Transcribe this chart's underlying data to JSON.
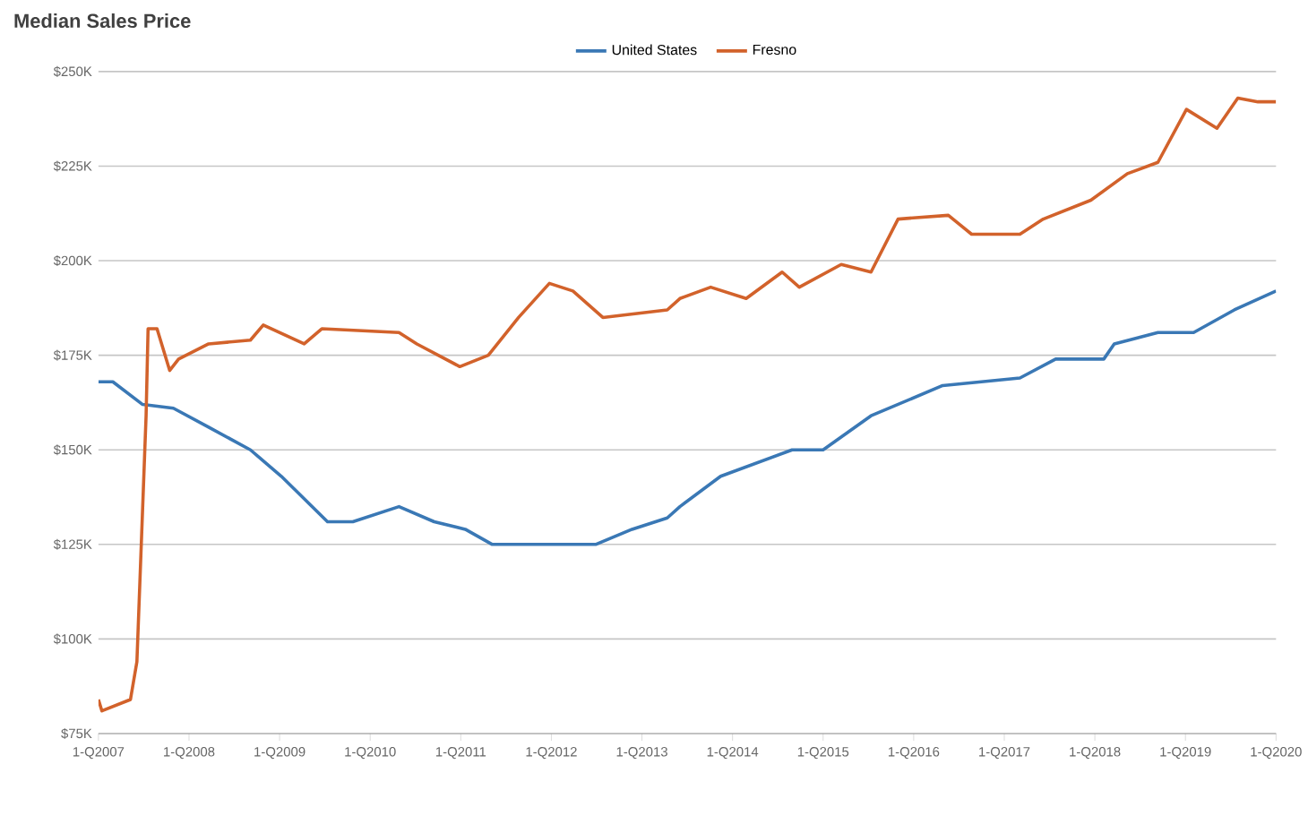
{
  "chart_data": {
    "type": "line",
    "title": "Median Sales Price",
    "xlim": [
      "2007-01-01",
      "2020-01-01"
    ],
    "xticks": [
      {
        "value": "2007-01-01",
        "label": "1-Q2007"
      },
      {
        "value": "2008-01-01",
        "label": "1-Q2008"
      },
      {
        "value": "2009-01-01",
        "label": "1-Q2009"
      },
      {
        "value": "2010-01-01",
        "label": "1-Q2010"
      },
      {
        "value": "2011-01-01",
        "label": "1-Q2011"
      },
      {
        "value": "2012-01-01",
        "label": "1-Q2012"
      },
      {
        "value": "2013-01-01",
        "label": "1-Q2013"
      },
      {
        "value": "2014-01-01",
        "label": "1-Q2014"
      },
      {
        "value": "2015-01-01",
        "label": "1-Q2015"
      },
      {
        "value": "2016-01-01",
        "label": "1-Q2016"
      },
      {
        "value": "2017-01-01",
        "label": "1-Q2017"
      },
      {
        "value": "2018-01-01",
        "label": "1-Q2018"
      },
      {
        "value": "2019-01-01",
        "label": "1-Q2019"
      },
      {
        "value": "2020-01-01",
        "label": "1-Q2020"
      }
    ],
    "ylim": [
      75,
      250
    ],
    "yticks": [
      {
        "value": 75,
        "label": "$75K"
      },
      {
        "value": 100,
        "label": "$100K"
      },
      {
        "value": 125,
        "label": "$125K"
      },
      {
        "value": 150,
        "label": "$150K"
      },
      {
        "value": 175,
        "label": "$175K"
      },
      {
        "value": 200,
        "label": "$200K"
      },
      {
        "value": 225,
        "label": "$225K"
      },
      {
        "value": 250,
        "label": "$250K"
      }
    ],
    "grid": "y",
    "legend": "top",
    "marker": "none",
    "line_style": "solid",
    "series": [
      {
        "name": "United States",
        "color": "#3a78b5",
        "x": [
          "2007-01-01",
          "2007-02-28",
          "2007-06-28",
          "2007-10-30",
          "2008-03-20",
          "2008-09-05",
          "2009-01-08",
          "2009-07-13",
          "2009-10-23",
          "2010-04-27",
          "2010-09-16",
          "2011-01-19",
          "2011-05-08",
          "2012-06-28",
          "2012-11-22",
          "2013-04-13",
          "2013-06-03",
          "2013-11-14",
          "2014-08-29",
          "2015-01-01",
          "2015-07-13",
          "2016-04-27",
          "2017-03-05",
          "2017-07-27",
          "2018-02-06",
          "2018-03-20",
          "2018-09-12",
          "2019-02-03",
          "2019-07-17",
          "2020-01-01"
        ],
        "values": [
          168,
          168,
          162,
          161,
          156,
          150,
          143,
          131,
          131,
          135,
          131,
          129,
          125,
          125,
          129,
          132,
          135,
          143,
          150,
          150,
          159,
          167,
          169,
          174,
          174,
          178,
          181,
          181,
          187,
          192
        ]
      },
      {
        "name": "Fresno",
        "color": "#d2622b",
        "x": [
          "2007-01-01",
          "2007-01-15",
          "2007-05-10",
          "2007-06-05",
          "2007-07-12",
          "2007-07-20",
          "2007-08-25",
          "2007-10-15",
          "2007-11-20",
          "2008-03-20",
          "2008-09-05",
          "2008-10-27",
          "2009-04-10",
          "2009-06-20",
          "2010-04-27",
          "2010-07-08",
          "2010-12-28",
          "2011-04-22",
          "2011-08-22",
          "2011-12-24",
          "2012-03-28",
          "2012-07-27",
          "2013-04-13",
          "2013-06-03",
          "2013-10-05",
          "2014-02-25",
          "2014-07-20",
          "2014-09-27",
          "2015-03-15",
          "2015-07-13",
          "2015-10-30",
          "2016-05-20",
          "2016-08-22",
          "2017-03-05",
          "2017-06-07",
          "2017-12-16",
          "2018-05-12",
          "2018-09-12",
          "2019-01-05",
          "2019-05-08",
          "2019-07-31",
          "2019-10-20",
          "2020-01-01"
        ],
        "values": [
          84,
          81,
          84,
          94,
          159,
          182,
          182,
          171,
          174,
          178,
          179,
          183,
          178,
          182,
          181,
          178,
          172,
          175,
          185,
          194,
          192,
          185,
          187,
          190,
          193,
          190,
          197,
          193,
          199,
          197,
          211,
          212,
          207,
          207,
          211,
          216,
          223,
          226,
          240,
          235,
          243,
          242,
          242
        ]
      }
    ]
  }
}
